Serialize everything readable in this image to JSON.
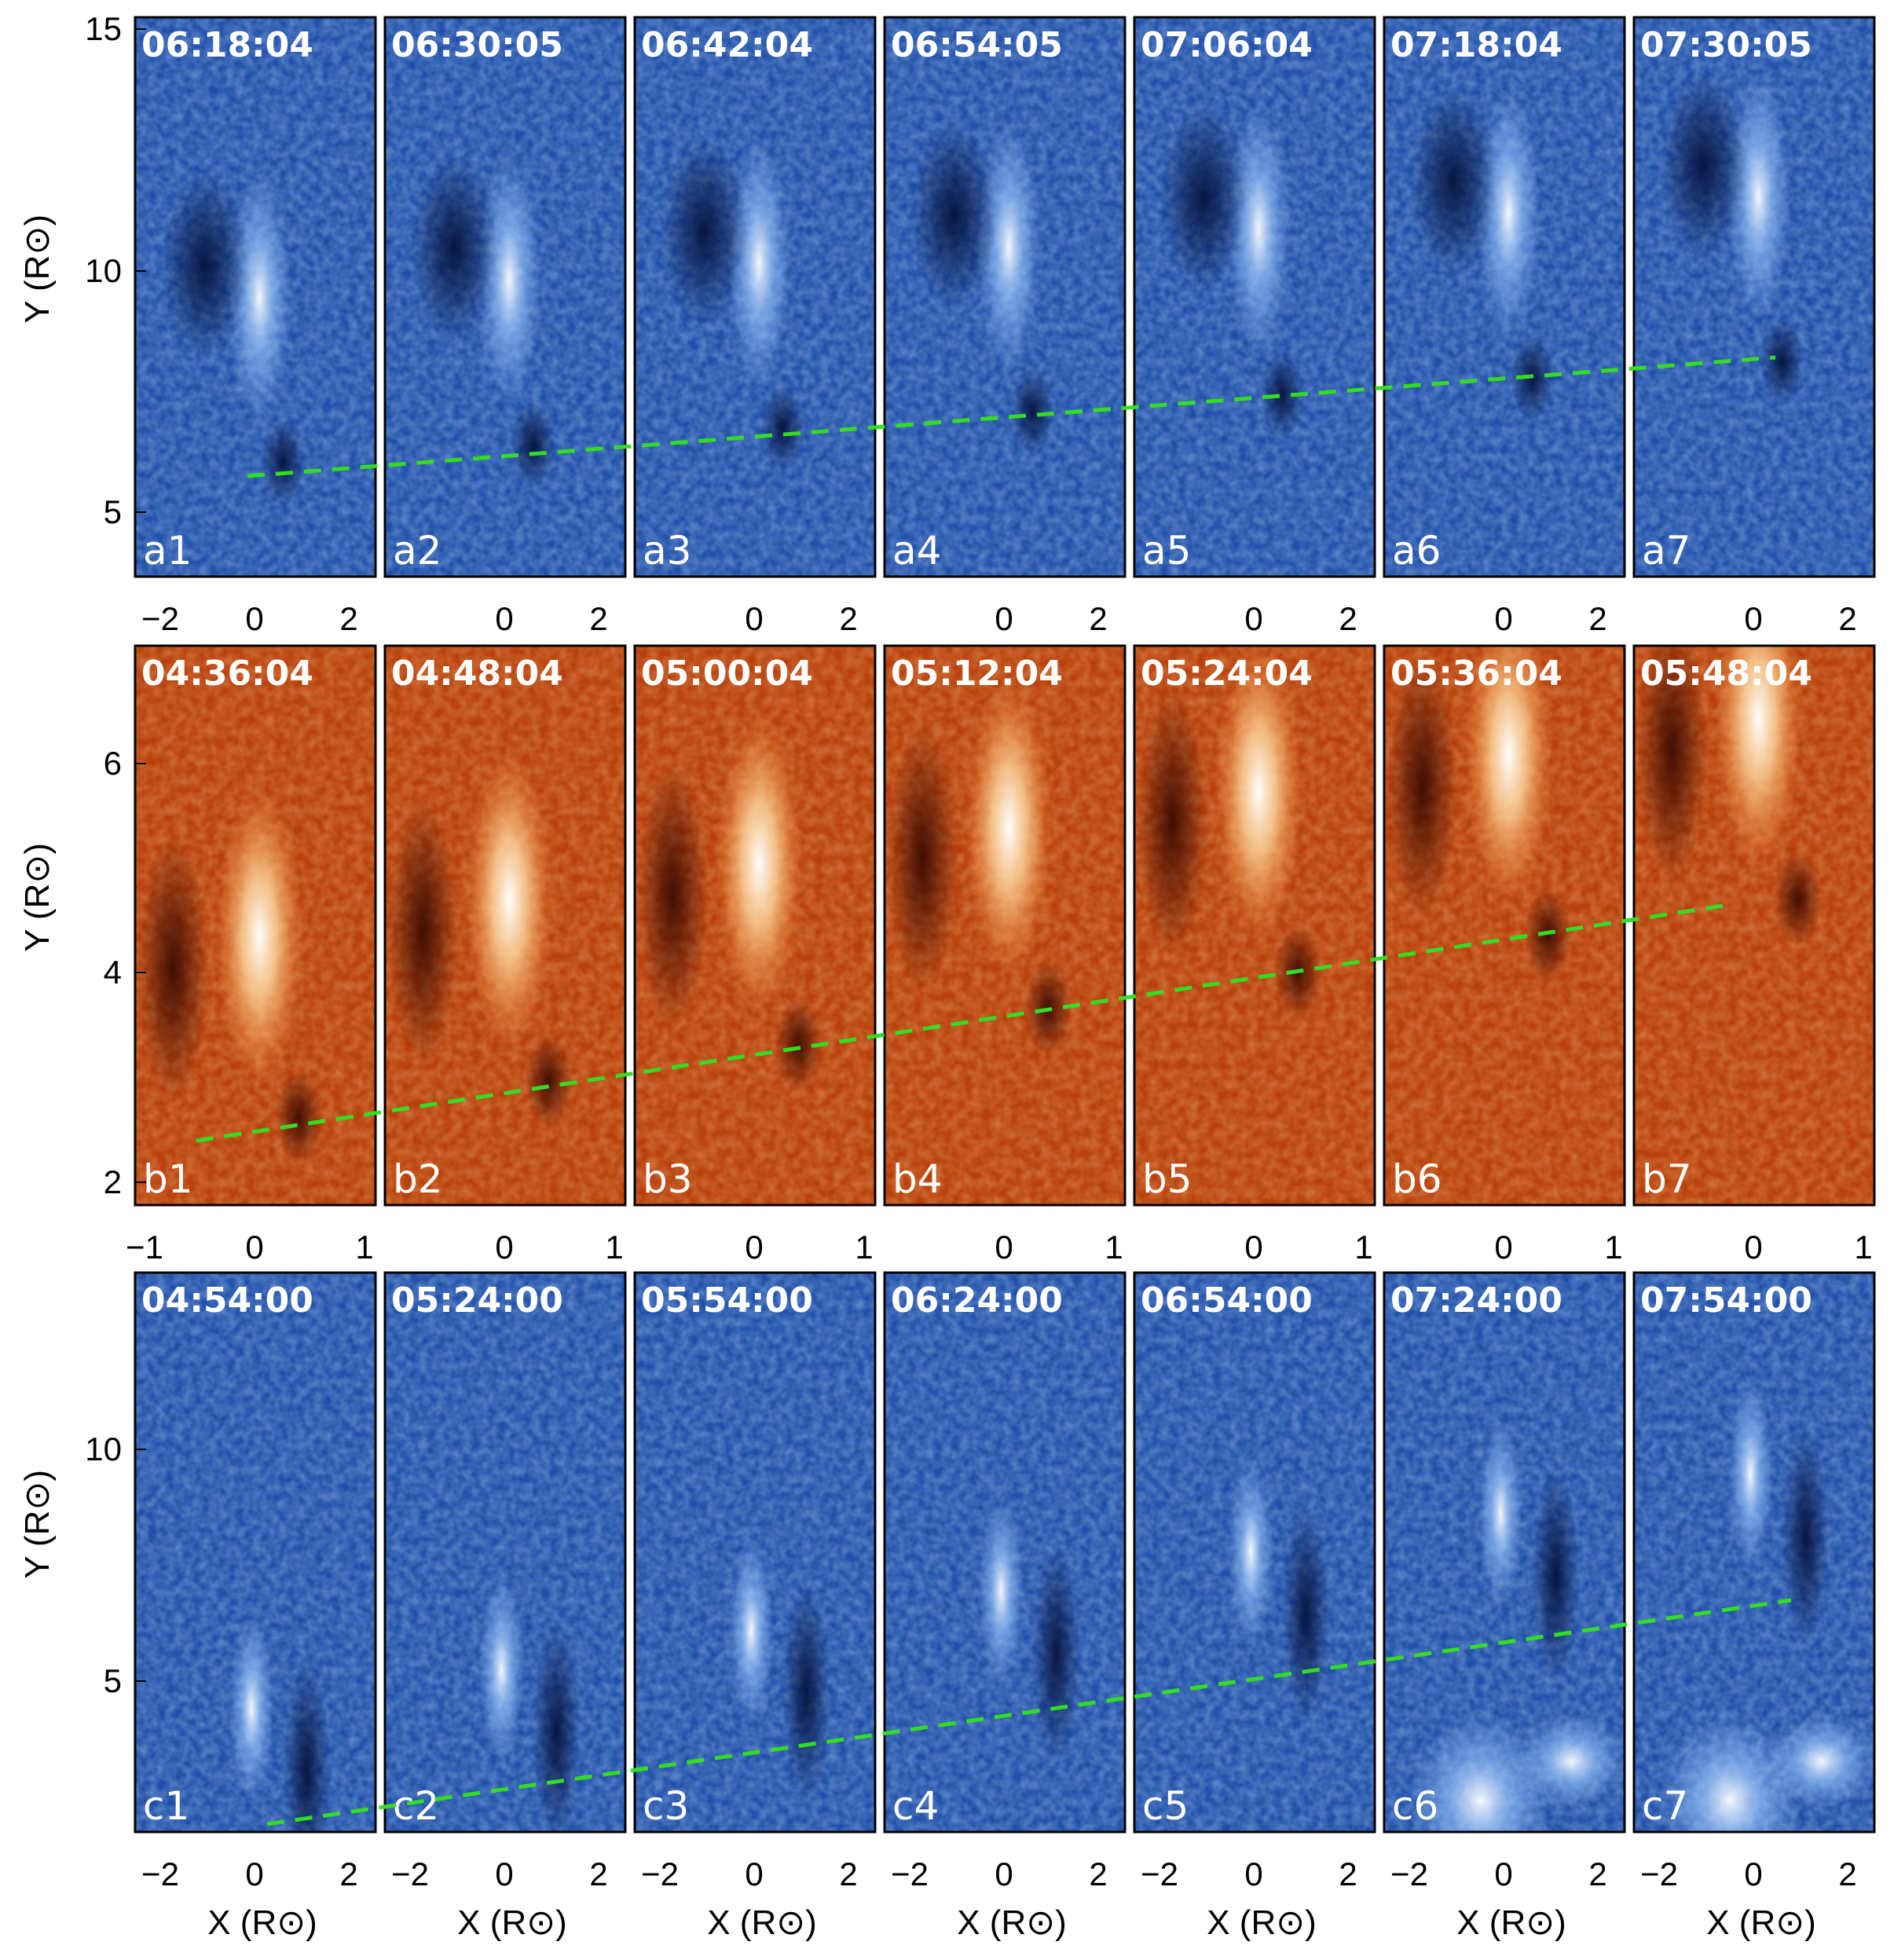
{
  "rows": [
    {
      "id": "a",
      "theme": "blue",
      "ylabel": "Y (R⊙)",
      "y_ticks": [
        "15",
        "10",
        "5"
      ],
      "x_ticks": [
        "−2",
        "0",
        "2"
      ],
      "xlabel": "",
      "panels": [
        {
          "label": "a1",
          "time": "06:18:04"
        },
        {
          "label": "a2",
          "time": "06:30:05"
        },
        {
          "label": "a3",
          "time": "06:42:04"
        },
        {
          "label": "a4",
          "time": "06:54:05"
        },
        {
          "label": "a5",
          "time": "07:06:04"
        },
        {
          "label": "a6",
          "time": "07:18:04"
        },
        {
          "label": "a7",
          "time": "07:30:05"
        }
      ]
    },
    {
      "id": "b",
      "theme": "orange",
      "ylabel": "Y (R⊙)",
      "y_ticks": [
        "6",
        "4",
        "2"
      ],
      "x_ticks": [
        "−1",
        "0",
        "1"
      ],
      "xlabel": "",
      "panels": [
        {
          "label": "b1",
          "time": "04:36:04"
        },
        {
          "label": "b2",
          "time": "04:48:04"
        },
        {
          "label": "b3",
          "time": "05:00:04"
        },
        {
          "label": "b4",
          "time": "05:12:04"
        },
        {
          "label": "b5",
          "time": "05:24:04"
        },
        {
          "label": "b6",
          "time": "05:36:04"
        },
        {
          "label": "b7",
          "time": "05:48:04"
        }
      ]
    },
    {
      "id": "c",
      "theme": "blue",
      "ylabel": "Y (R⊙)",
      "y_ticks": [
        "10",
        "5"
      ],
      "x_ticks": [
        "−2",
        "0",
        "2"
      ],
      "xlabel": "X (R⊙)",
      "panels": [
        {
          "label": "c1",
          "time": "04:54:00"
        },
        {
          "label": "c2",
          "time": "05:24:00"
        },
        {
          "label": "c3",
          "time": "05:54:00"
        },
        {
          "label": "c4",
          "time": "06:24:00"
        },
        {
          "label": "c5",
          "time": "06:54:00"
        },
        {
          "label": "c6",
          "time": "07:24:00"
        },
        {
          "label": "c7",
          "time": "07:54:00"
        }
      ]
    }
  ],
  "colors": {
    "blue_bg": "#1f4fa8",
    "blue_dark": "#0a1f5c",
    "blue_bright": "#e8f2ff",
    "orange_bg": "#b8400c",
    "orange_dark": "#5a1402",
    "orange_bright": "#fff1d8",
    "track_line": "#33dd22"
  }
}
